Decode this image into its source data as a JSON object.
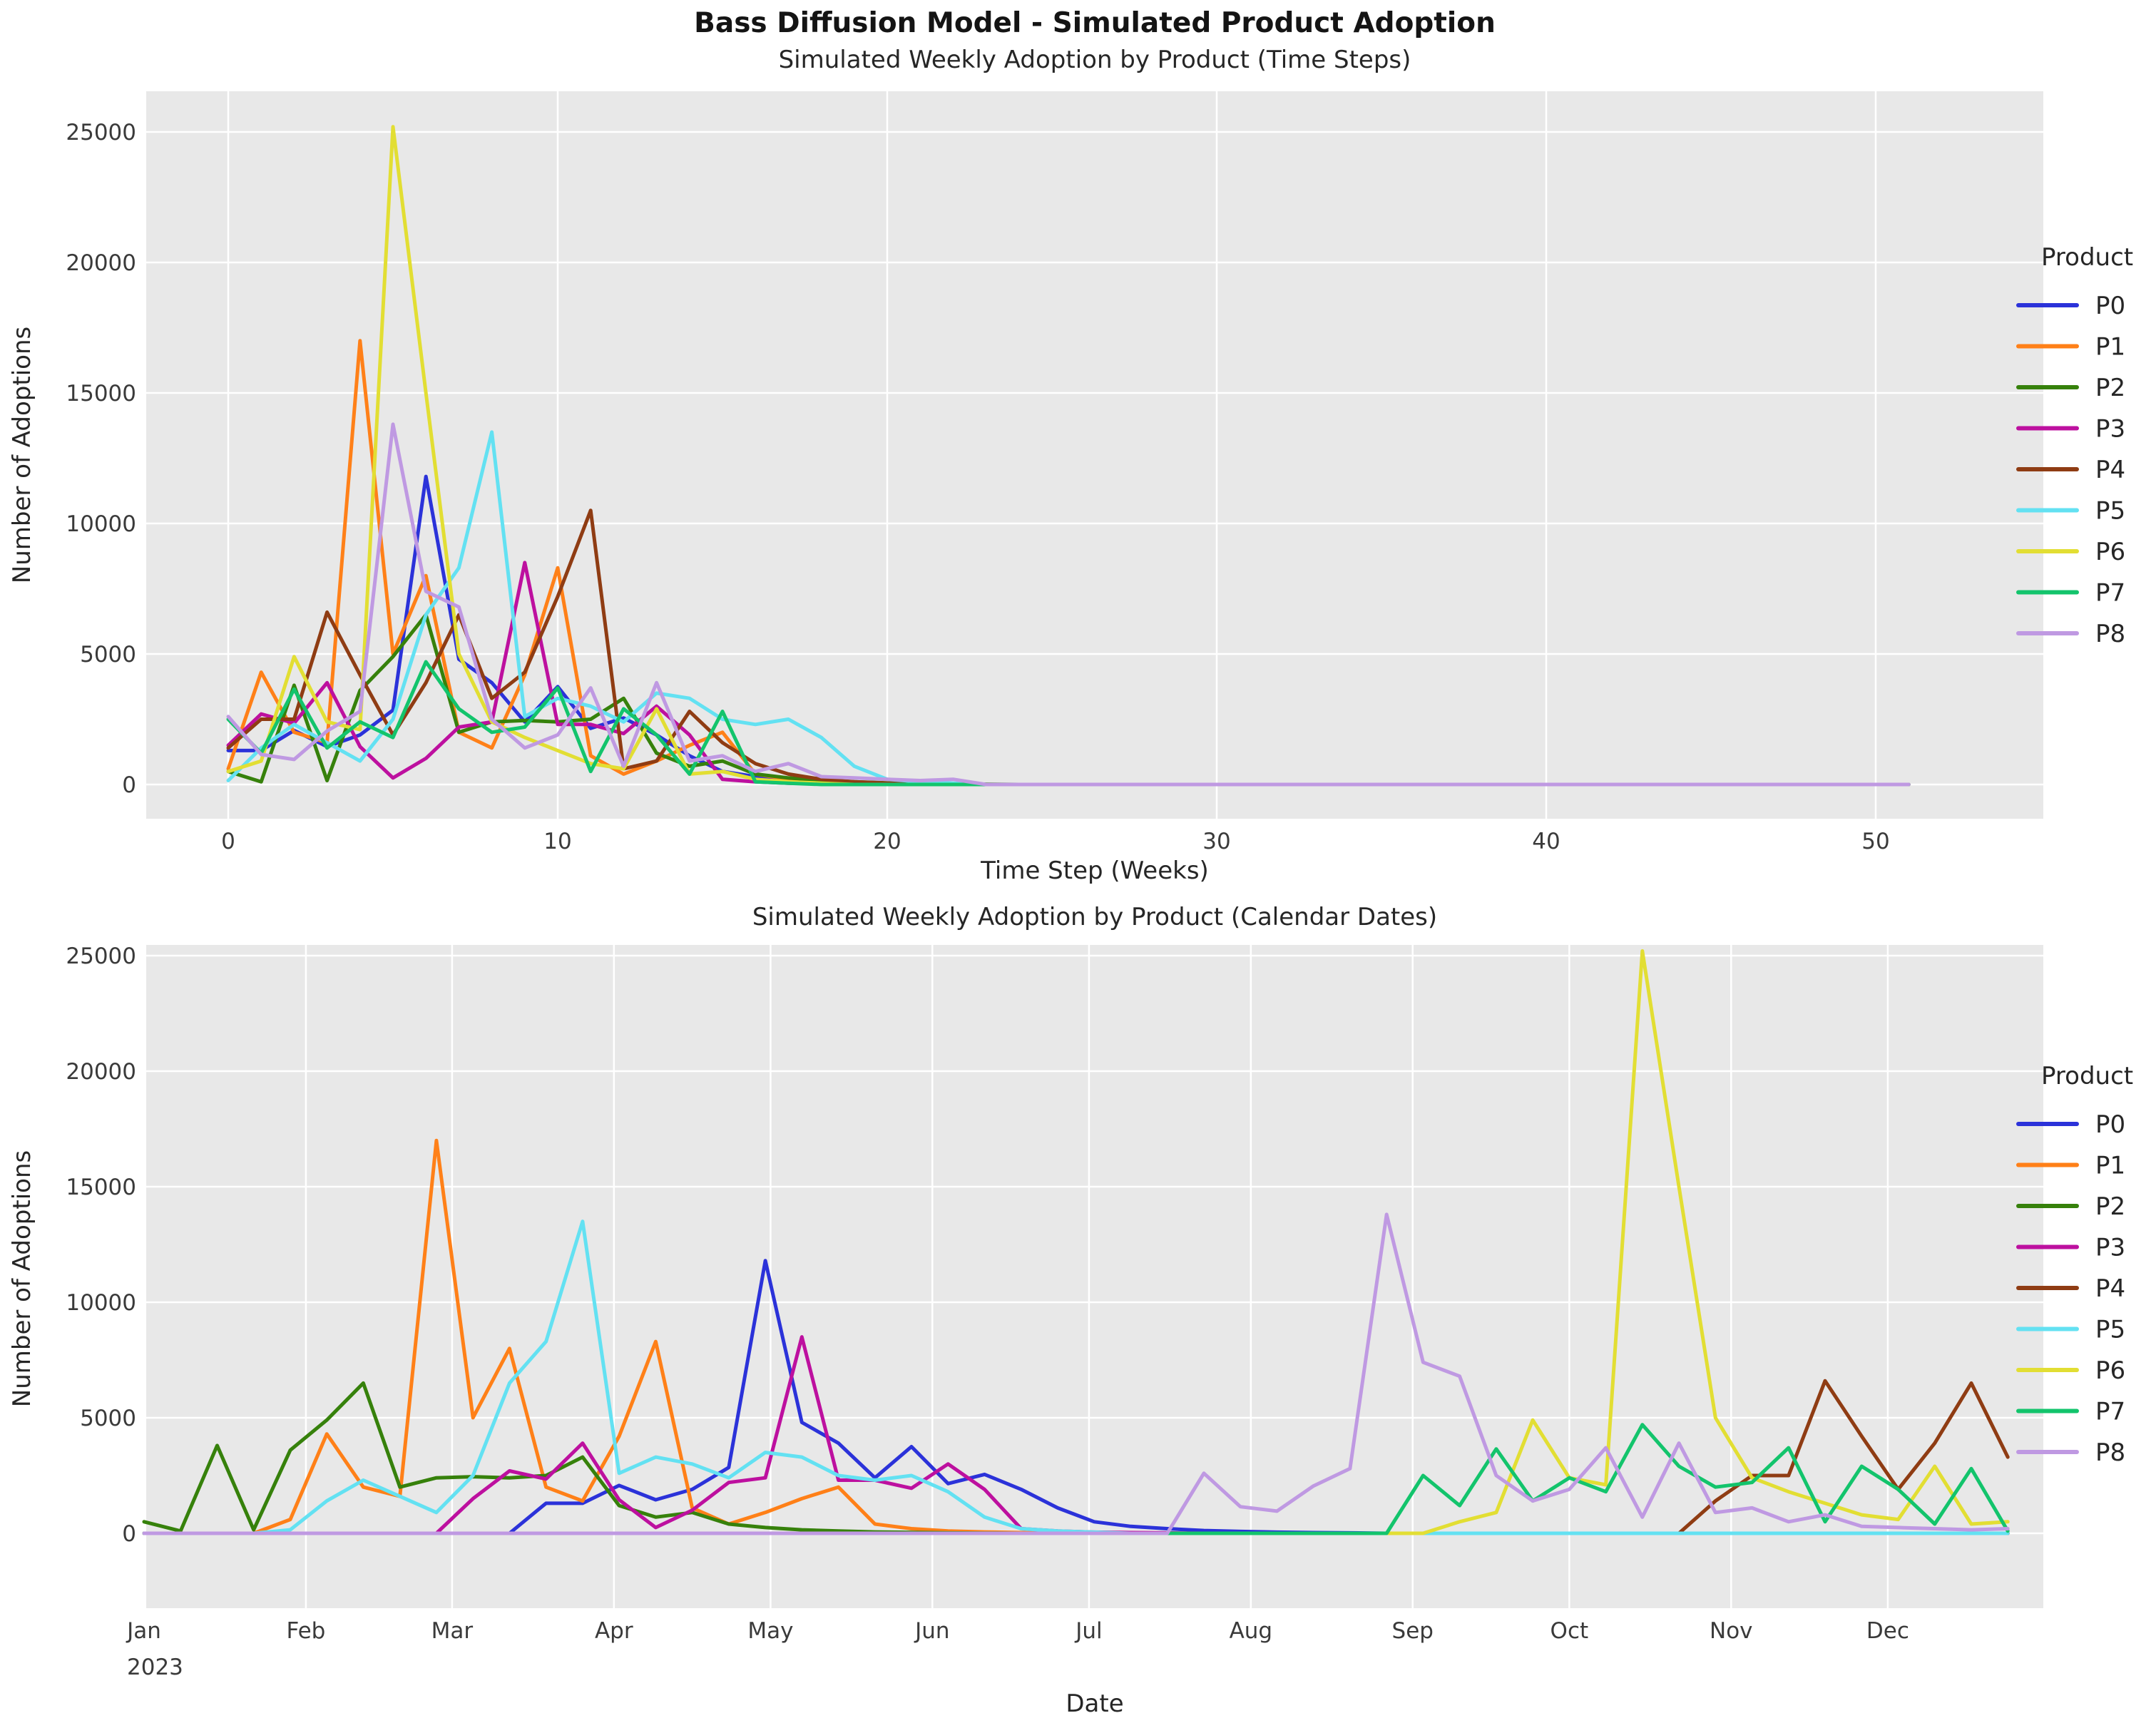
{
  "title": "Bass Diffusion Model - Simulated Product Adoption",
  "panel_background": "#e8e8e8",
  "grid_color": "#ffffff",
  "figure_background": "#ffffff",
  "chart_data": {
    "type": "line",
    "y_unit": "adoptions per week",
    "weeks_total": 52,
    "legend_title": "Product",
    "series": [
      {
        "name": "P0",
        "color": "#2b32d9",
        "bottom_chart_start_week": 11,
        "values": [
          1300,
          1300,
          2070,
          1450,
          1900,
          2850,
          11800,
          4800,
          3900,
          2400,
          3750,
          2150,
          2550,
          1900,
          1100,
          500,
          300,
          200,
          120,
          80,
          50,
          30,
          20
        ]
      },
      {
        "name": "P1",
        "color": "#ff8018",
        "bottom_chart_start_week": 4,
        "values": [
          600,
          4300,
          2000,
          1600,
          17000,
          5000,
          8000,
          2000,
          1400,
          4200,
          8300,
          1100,
          400,
          900,
          1500,
          2000,
          400,
          200,
          100,
          60,
          30
        ]
      },
      {
        "name": "P2",
        "color": "#36810b",
        "bottom_chart_start_week": 0,
        "values": [
          500,
          100,
          3800,
          150,
          3600,
          4900,
          6500,
          2000,
          2400,
          2450,
          2400,
          2500,
          3300,
          1200,
          700,
          900,
          400,
          250,
          150,
          100,
          60,
          40,
          20,
          10
        ]
      },
      {
        "name": "P3",
        "color": "#bd109f",
        "bottom_chart_start_week": 9,
        "values": [
          1500,
          2700,
          2350,
          3900,
          1450,
          250,
          1000,
          2200,
          2400,
          8500,
          2300,
          2300,
          1950,
          3000,
          1900,
          200,
          100,
          50,
          30,
          20
        ]
      },
      {
        "name": "P4",
        "color": "#8f3c13",
        "bottom_chart_start_week": 43,
        "values": [
          1400,
          2500,
          2500,
          6600,
          4200,
          1900,
          3900,
          6500,
          3300,
          4300,
          7200,
          10500,
          600,
          900,
          2800,
          1600,
          800,
          400,
          200,
          100,
          50
        ]
      },
      {
        "name": "P5",
        "color": "#63e1f2",
        "bottom_chart_start_week": 4,
        "values": [
          150,
          1400,
          2300,
          1600,
          900,
          2500,
          6500,
          8300,
          13500,
          2600,
          3300,
          3000,
          2400,
          3500,
          3300,
          2500,
          2300,
          2500,
          1800,
          700,
          200,
          100,
          50
        ]
      },
      {
        "name": "P6",
        "color": "#e2de33",
        "bottom_chart_start_week": 36,
        "values": [
          500,
          900,
          4900,
          2400,
          2100,
          25200,
          15000,
          5000,
          2400,
          1800,
          1300,
          800,
          600,
          2900,
          400,
          500,
          200,
          100,
          50
        ]
      },
      {
        "name": "P7",
        "color": "#13c46c",
        "bottom_chart_start_week": 35,
        "values": [
          2500,
          1200,
          3650,
          1400,
          2400,
          1800,
          4700,
          2900,
          2000,
          2200,
          3700,
          500,
          2900,
          1900,
          400,
          2800,
          100,
          50
        ]
      },
      {
        "name": "P8",
        "color": "#bf99e2",
        "bottom_chart_start_week": 29,
        "values": [
          2600,
          1150,
          960,
          2050,
          2800,
          13800,
          7400,
          6800,
          2500,
          1400,
          1900,
          3700,
          700,
          3900,
          900,
          1100,
          500,
          800,
          300,
          250,
          200,
          150,
          200
        ]
      }
    ],
    "charts": [
      {
        "subtitle": "Simulated Weekly Adoption by Product (Time Steps)",
        "xlabel": "Time Step (Weeks)",
        "ylabel": "Number of Adoptions",
        "x_ticks": [
          0,
          10,
          20,
          30,
          40,
          50
        ],
        "y_ticks": [
          0,
          5000,
          10000,
          15000,
          20000,
          25000
        ],
        "ylim": [
          0,
          26000
        ],
        "legend_title": "Product",
        "legend_position": "right"
      },
      {
        "subtitle": "Simulated Weekly Adoption by Product (Calendar Dates)",
        "xlabel": "Date",
        "ylabel": "Number of Adoptions",
        "month_tick_labels": [
          "Jan",
          "Feb",
          "Mar",
          "Apr",
          "May",
          "Jun",
          "Jul",
          "Aug",
          "Sep",
          "Oct",
          "Nov",
          "Dec"
        ],
        "year_label": "2023",
        "y_ticks": [
          0,
          5000,
          10000,
          15000,
          20000,
          25000
        ],
        "ylim": [
          0,
          26000
        ],
        "legend_title": "Product",
        "legend_position": "right"
      }
    ]
  }
}
